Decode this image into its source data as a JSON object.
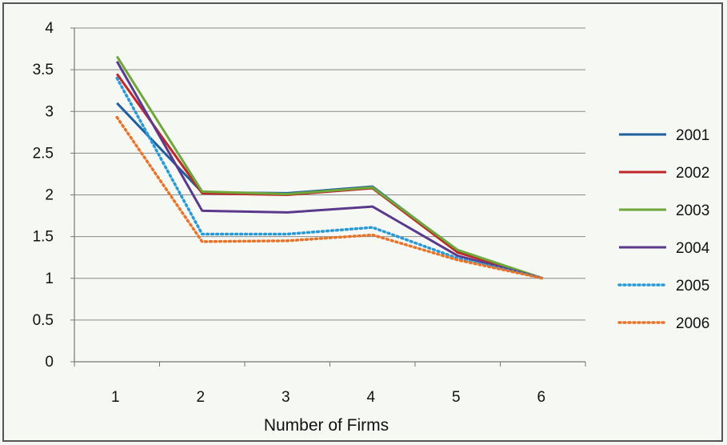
{
  "chart_data": {
    "type": "line",
    "title": "",
    "xlabel": "Number of Firms",
    "ylabel": "",
    "x": [
      1,
      2,
      3,
      4,
      5,
      6
    ],
    "ylim": [
      0,
      4
    ],
    "yticks": [
      "0",
      "0.5",
      "1",
      "1.5",
      "2",
      "2.5",
      "3",
      "3.5",
      "4"
    ],
    "xticks": [
      "1",
      "2",
      "3",
      "4",
      "5",
      "6"
    ],
    "grid": true,
    "legend_position": "right",
    "series": [
      {
        "name": "2001",
        "color": "#1f5f9e",
        "style": "solid",
        "values": [
          3.1,
          2.03,
          2.02,
          2.1,
          1.33,
          1.0
        ]
      },
      {
        "name": "2002",
        "color": "#c0262a",
        "style": "solid",
        "values": [
          3.45,
          2.02,
          2.0,
          2.08,
          1.31,
          1.0
        ]
      },
      {
        "name": "2003",
        "color": "#6fa83a",
        "style": "solid",
        "values": [
          3.66,
          2.04,
          2.01,
          2.09,
          1.34,
          1.0
        ]
      },
      {
        "name": "2004",
        "color": "#5b3a8e",
        "style": "solid",
        "values": [
          3.6,
          1.81,
          1.79,
          1.86,
          1.27,
          1.0
        ]
      },
      {
        "name": "2005",
        "color": "#2a9ad6",
        "style": "dotted",
        "values": [
          3.4,
          1.53,
          1.53,
          1.61,
          1.24,
          1.0
        ]
      },
      {
        "name": "2006",
        "color": "#e8742a",
        "style": "dotted",
        "values": [
          2.93,
          1.44,
          1.45,
          1.52,
          1.22,
          1.0
        ]
      }
    ]
  }
}
